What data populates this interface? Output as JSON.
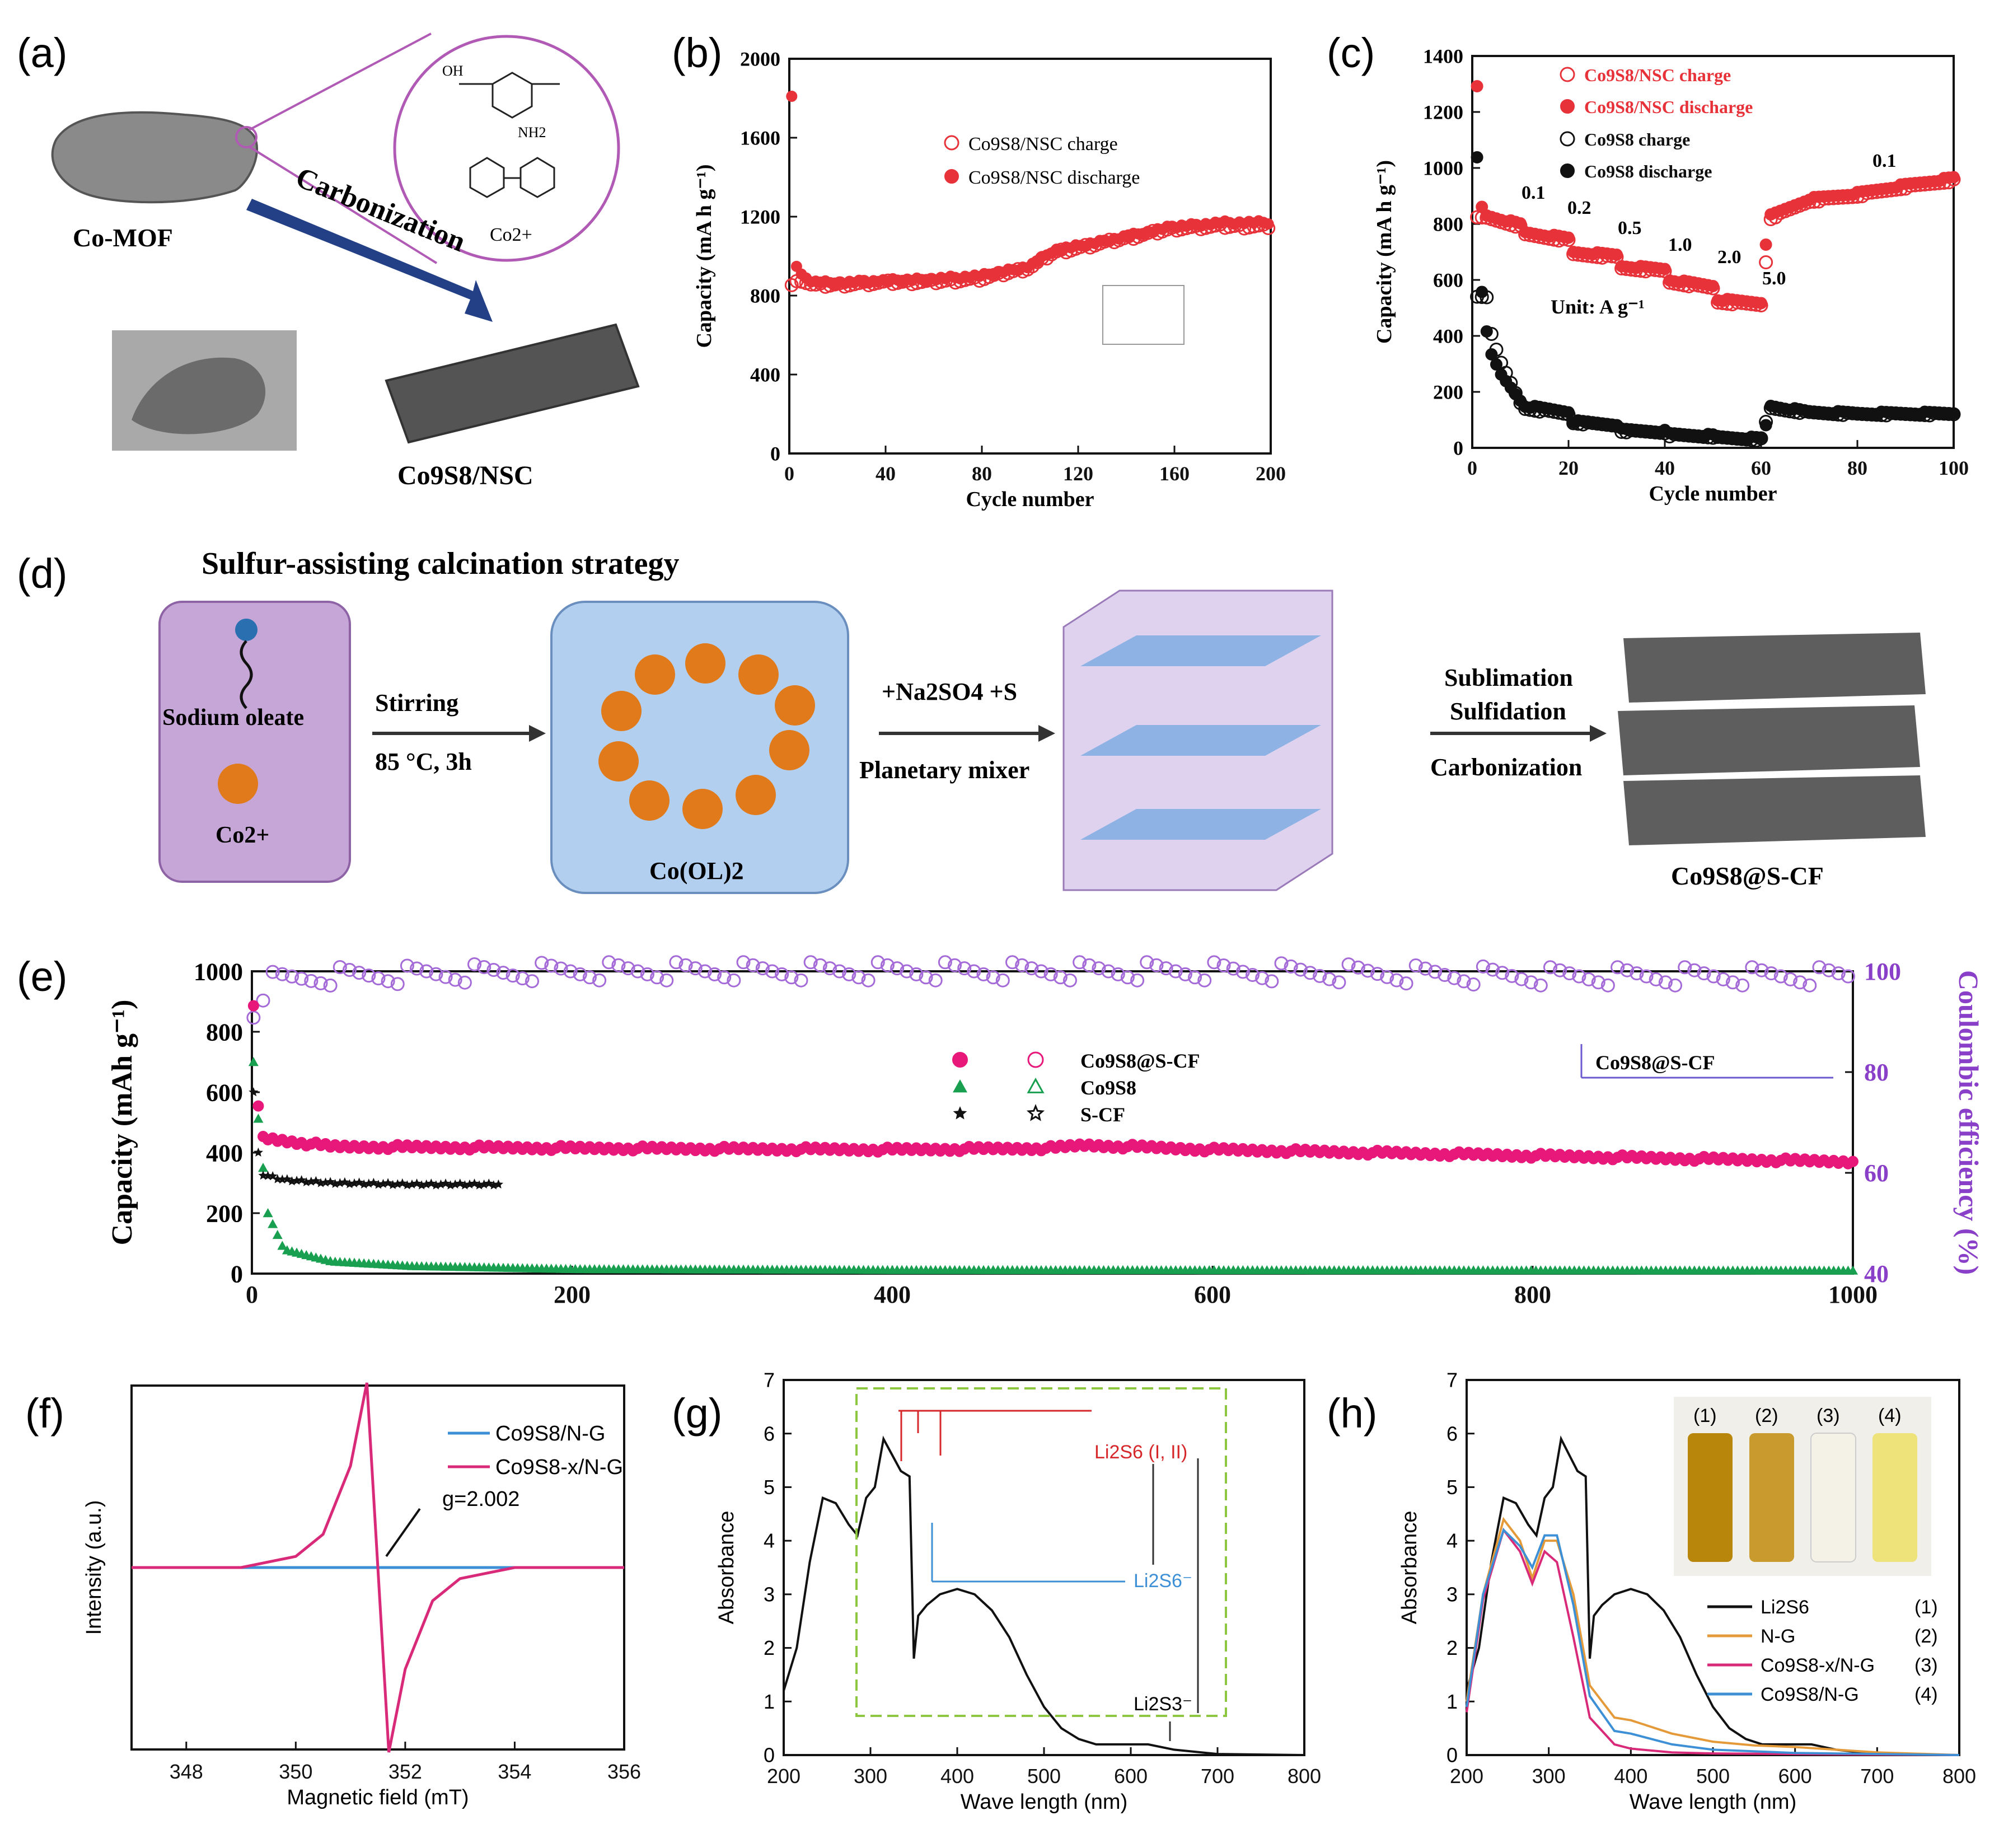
{
  "panels": {
    "a": {
      "label": "(a)",
      "mof_label": "Co-MOF",
      "arrow_label": "Carbonization",
      "product_label": "Co9S8/NSC",
      "ligand_labels": [
        "OH",
        "NH2",
        "Co2+"
      ]
    },
    "d": {
      "label": "(d)",
      "title": "Sulfur-assisting calcination strategy",
      "step1": {
        "top": "Stirring",
        "bottom": "85 °C, 3h"
      },
      "step2": {
        "top": "+Na2SO4 +S",
        "bottom": "Planetary mixer"
      },
      "step3": [
        "Sublimation",
        "Sulfidation",
        "Carbonization"
      ],
      "box1_labels": [
        "Sodium oleate",
        "Co2+"
      ],
      "box2_label": "Co(OL)2",
      "product_label": "Co9S8@S-CF"
    }
  },
  "colors": {
    "red": "#e8323a",
    "pink": "#e8187a",
    "violet": "#a46bd8",
    "green": "#18a050",
    "black": "#111111",
    "blue": "#3d8fd6",
    "magenta": "#d92a7a",
    "orange": "#e59a3a",
    "navy": "#2a4c8e"
  },
  "chart_data": [
    {
      "id": "b",
      "label": "(b)",
      "type": "scatter",
      "xlabel": "Cycle number",
      "ylabel": "Capacity (mA h g⁻¹)",
      "xlim": [
        0,
        200
      ],
      "ylim": [
        0,
        2000
      ],
      "xticks": [
        0,
        40,
        80,
        120,
        160,
        200
      ],
      "yticks": [
        0,
        400,
        800,
        1200,
        1600,
        2000
      ],
      "legend": [
        "Co9S8/NSC charge",
        "Co9S8/NSC discharge"
      ],
      "series": [
        {
          "name": "Co9S8/NSC charge",
          "marker": "open-circle",
          "x": [
            1,
            5,
            10,
            20,
            40,
            60,
            80,
            100,
            110,
            120,
            140,
            160,
            180,
            200
          ],
          "y": [
            850,
            880,
            850,
            855,
            865,
            870,
            885,
            940,
            1020,
            1040,
            1090,
            1140,
            1150,
            1150
          ]
        },
        {
          "name": "Co9S8/NSC discharge",
          "marker": "filled-circle",
          "x": [
            1,
            3,
            5,
            10,
            20,
            40,
            60,
            80,
            100,
            110,
            120,
            140,
            160,
            180,
            200
          ],
          "y": [
            1810,
            950,
            900,
            870,
            865,
            875,
            885,
            900,
            950,
            1030,
            1050,
            1100,
            1150,
            1170,
            1170
          ]
        }
      ]
    },
    {
      "id": "c",
      "label": "(c)",
      "type": "scatter",
      "xlabel": "Cycle number",
      "ylabel": "Capacity (mA h g⁻¹)",
      "xlim": [
        0,
        100
      ],
      "ylim": [
        0,
        1400
      ],
      "xticks": [
        0,
        20,
        40,
        60,
        80,
        100
      ],
      "yticks": [
        0,
        200,
        400,
        600,
        800,
        1000,
        1200,
        1400
      ],
      "legend": [
        "Co9S8/NSC charge",
        "Co9S8/NSC discharge",
        "Co9S8 charge",
        "Co9S8 discharge"
      ],
      "rate_labels": [
        "0.1",
        "0.2",
        "0.5",
        "1.0",
        "2.0",
        "5.0",
        "0.1"
      ],
      "unit_label": "Unit: A g⁻¹",
      "series": [
        {
          "name": "Co9S8/NSC charge",
          "marker": "open-circle",
          "color": "#e8323a",
          "x": [
            3,
            10,
            11,
            20,
            21,
            30,
            31,
            40,
            41,
            50,
            51,
            60,
            62,
            70,
            80,
            90,
            100
          ],
          "y": [
            820,
            790,
            760,
            740,
            690,
            680,
            640,
            630,
            590,
            570,
            520,
            510,
            820,
            880,
            900,
            930,
            955
          ]
        },
        {
          "name": "Co9S8/NSC discharge",
          "marker": "filled-circle",
          "color": "#e8323a",
          "x": [
            1,
            2,
            3,
            10,
            11,
            20,
            21,
            30,
            31,
            40,
            41,
            50,
            51,
            60,
            61,
            62,
            70,
            80,
            90,
            100
          ],
          "y": [
            1290,
            860,
            830,
            800,
            770,
            750,
            700,
            690,
            650,
            640,
            600,
            580,
            530,
            520,
            730,
            830,
            890,
            910,
            940,
            965
          ]
        },
        {
          "name": "Co9S8 charge",
          "marker": "open-circle",
          "color": "#111111",
          "x": [
            3,
            4,
            6,
            10,
            11,
            20,
            21,
            30,
            31,
            40,
            41,
            50,
            51,
            60,
            61,
            62,
            70,
            80,
            100
          ],
          "y": [
            540,
            410,
            300,
            160,
            140,
            120,
            90,
            80,
            60,
            55,
            45,
            40,
            35,
            30,
            90,
            140,
            125,
            120,
            120
          ]
        },
        {
          "name": "Co9S8 discharge",
          "marker": "filled-circle",
          "color": "#111111",
          "x": [
            1,
            2,
            3,
            4,
            6,
            10,
            11,
            20,
            21,
            30,
            31,
            40,
            41,
            50,
            51,
            60,
            61,
            62,
            70,
            80,
            100
          ],
          "y": [
            1040,
            560,
            420,
            330,
            260,
            170,
            150,
            130,
            95,
            85,
            65,
            60,
            50,
            45,
            38,
            35,
            80,
            150,
            130,
            125,
            125
          ]
        }
      ]
    },
    {
      "id": "e",
      "label": "(e)",
      "type": "scatter",
      "xlabel": "",
      "ylabel": "Capacity (mAh g⁻¹)",
      "y2label": "Coulombic efficiency (%)",
      "xlim": [
        0,
        1000
      ],
      "ylim": [
        0,
        1000
      ],
      "y2lim": [
        40,
        100
      ],
      "xticks": [
        0,
        200,
        400,
        600,
        800,
        1000
      ],
      "yticks": [
        0,
        200,
        400,
        600,
        800,
        1000
      ],
      "y2ticks": [
        40,
        60,
        80,
        100
      ],
      "legend": [
        "Co9S8@S-CF",
        "Co9S8",
        "S-CF"
      ],
      "annotation": "Co9S8@S-CF",
      "series": [
        {
          "name": "Co9S8@S-CF",
          "marker": "filled-circle",
          "x": [
            1,
            5,
            50,
            200,
            400,
            500,
            520,
            600,
            800,
            1000
          ],
          "y": [
            880,
            450,
            420,
            415,
            410,
            415,
            425,
            410,
            390,
            370
          ]
        },
        {
          "name": "Co9S8",
          "marker": "filled-triangle",
          "x": [
            1,
            5,
            10,
            20,
            50,
            100,
            200,
            400,
            1000
          ],
          "y": [
            700,
            450,
            200,
            80,
            40,
            25,
            15,
            12,
            10
          ]
        },
        {
          "name": "S-CF",
          "marker": "filled-star",
          "x": [
            1,
            5,
            20,
            50,
            100,
            155
          ],
          "y": [
            600,
            330,
            310,
            300,
            295,
            295
          ]
        },
        {
          "name": "Co9S8@S-CF CE",
          "marker": "open-circle",
          "axis": "y2",
          "x": [
            1,
            10,
            50,
            200,
            400,
            600,
            800,
            1000
          ],
          "y": [
            92,
            98,
            99,
            100,
            100,
            100,
            99,
            99
          ]
        }
      ]
    },
    {
      "id": "f",
      "label": "(f)",
      "type": "line",
      "xlabel": "Magnetic field (mT)",
      "ylabel": "Intensity (a.u.)",
      "xlim": [
        347,
        356
      ],
      "xticks": [
        348,
        350,
        352,
        354,
        356
      ],
      "annotation": "g=2.002",
      "legend": [
        "Co9S8/N-G",
        "Co9S8-x/N-G"
      ],
      "series": [
        {
          "name": "Co9S8/N-G",
          "x": [
            347,
            356
          ],
          "y": [
            0,
            0
          ]
        },
        {
          "name": "Co9S8-x/N-G",
          "x": [
            347,
            349,
            350,
            350.5,
            351,
            351.3,
            351.5,
            351.7,
            352,
            352.5,
            353,
            354,
            356
          ],
          "y": [
            0,
            0,
            0.06,
            0.18,
            0.55,
            1.0,
            0,
            -1.0,
            -0.55,
            -0.18,
            -0.06,
            0,
            0
          ]
        }
      ]
    },
    {
      "id": "g",
      "label": "(g)",
      "type": "line",
      "xlabel": "Wave length (nm)",
      "ylabel": "Absorbance",
      "xlim": [
        200,
        800
      ],
      "ylim": [
        0,
        7
      ],
      "xticks": [
        200,
        300,
        400,
        500,
        600,
        700,
        800
      ],
      "yticks": [
        0,
        1,
        2,
        3,
        4,
        5,
        6,
        7
      ],
      "annotations": [
        "Li2S6 (I, II)",
        "Li2S6⁻",
        "Li2S3⁻"
      ],
      "series": [
        {
          "name": "Li2S6",
          "x": [
            200,
            215,
            230,
            245,
            260,
            275,
            285,
            295,
            305,
            315,
            325,
            335,
            345,
            350,
            355,
            365,
            380,
            400,
            420,
            440,
            460,
            480,
            500,
            520,
            540,
            560,
            580,
            600,
            620,
            650,
            700,
            800
          ],
          "y": [
            1.2,
            2.0,
            3.6,
            4.8,
            4.7,
            4.3,
            4.1,
            4.8,
            5.0,
            5.9,
            5.6,
            5.3,
            5.2,
            1.8,
            2.6,
            2.8,
            3.0,
            3.1,
            3.0,
            2.7,
            2.2,
            1.5,
            0.9,
            0.5,
            0.3,
            0.2,
            0.2,
            0.2,
            0.2,
            0.1,
            0.02,
            0
          ]
        }
      ]
    },
    {
      "id": "h",
      "label": "(h)",
      "type": "line",
      "xlabel": "Wave length (nm)",
      "ylabel": "Absorbance",
      "xlim": [
        200,
        800
      ],
      "ylim": [
        0,
        7
      ],
      "xticks": [
        200,
        300,
        400,
        500,
        600,
        700,
        800
      ],
      "yticks": [
        0,
        1,
        2,
        3,
        4,
        5,
        6,
        7
      ],
      "legend": [
        "Li2S6",
        "N-G",
        "Co9S8-x/N-G",
        "Co9S8/N-G"
      ],
      "legend_numbers": [
        "(1)",
        "(2)",
        "(3)",
        "(4)"
      ],
      "vial_labels": [
        "(1)",
        "(2)",
        "(3)",
        "(4)"
      ],
      "series": [
        {
          "name": "Li2S6",
          "x": [
            200,
            215,
            230,
            245,
            260,
            275,
            285,
            295,
            305,
            315,
            325,
            335,
            345,
            350,
            355,
            365,
            380,
            400,
            420,
            440,
            460,
            480,
            500,
            520,
            540,
            560,
            580,
            600,
            620,
            650,
            700,
            800
          ],
          "y": [
            1.2,
            2.0,
            3.6,
            4.8,
            4.7,
            4.3,
            4.1,
            4.8,
            5.0,
            5.9,
            5.6,
            5.3,
            5.2,
            1.8,
            2.6,
            2.8,
            3.0,
            3.1,
            3.0,
            2.7,
            2.2,
            1.5,
            0.9,
            0.5,
            0.3,
            0.2,
            0.2,
            0.2,
            0.2,
            0.1,
            0.02,
            0
          ]
        },
        {
          "name": "N-G",
          "x": [
            200,
            220,
            245,
            265,
            280,
            295,
            310,
            330,
            350,
            380,
            400,
            450,
            500,
            550,
            600,
            700,
            800
          ],
          "y": [
            1.0,
            3.0,
            4.4,
            4.0,
            3.3,
            4.0,
            4.0,
            3.0,
            1.3,
            0.7,
            0.65,
            0.4,
            0.25,
            0.18,
            0.15,
            0.05,
            0
          ]
        },
        {
          "name": "Co9S8-x/N-G",
          "x": [
            200,
            220,
            245,
            265,
            280,
            295,
            310,
            330,
            350,
            380,
            400,
            450,
            500,
            600,
            800
          ],
          "y": [
            0.8,
            2.9,
            4.2,
            3.8,
            3.2,
            3.8,
            3.6,
            2.2,
            0.7,
            0.2,
            0.12,
            0.05,
            0.03,
            0.02,
            0
          ]
        },
        {
          "name": "Co9S8/N-G",
          "x": [
            200,
            220,
            245,
            265,
            280,
            295,
            310,
            330,
            350,
            380,
            400,
            450,
            500,
            600,
            800
          ],
          "y": [
            0.9,
            3.0,
            4.2,
            3.9,
            3.5,
            4.1,
            4.1,
            2.8,
            1.1,
            0.45,
            0.4,
            0.2,
            0.1,
            0.04,
            0
          ]
        }
      ]
    }
  ]
}
